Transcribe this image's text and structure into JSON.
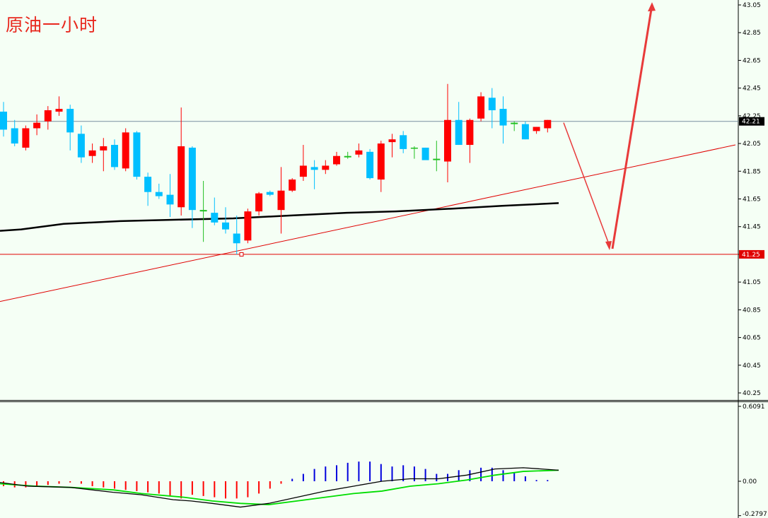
{
  "chart_data": [
    {
      "type": "candlestick",
      "title": "原油一小时",
      "ylim": [
        40.15,
        43.07
      ],
      "y_ticks": [
        "43.05",
        "42.85",
        "42.65",
        "42.45",
        "42.25",
        "42.05",
        "41.85",
        "41.65",
        "41.45",
        "41.25",
        "41.05",
        "40.85",
        "40.65",
        "40.45",
        "40.25"
      ],
      "current_price": "42.21",
      "support_price": "41.25",
      "colors": {
        "up": "#ff0000",
        "down": "#00bfff",
        "doji": "#22c022",
        "ma": "#000000",
        "support": "#e00000",
        "current_line": "#7a8fa0",
        "arrow": "#e83a3a"
      },
      "candles": [
        [
          42.28,
          42.35,
          42.1,
          42.15
        ],
        [
          42.16,
          42.22,
          42.03,
          42.05
        ],
        [
          42.02,
          42.18,
          42.0,
          42.16
        ],
        [
          42.16,
          42.26,
          42.11,
          42.2
        ],
        [
          42.21,
          42.32,
          42.15,
          42.29
        ],
        [
          42.28,
          42.39,
          42.25,
          42.3
        ],
        [
          42.3,
          42.33,
          42.0,
          42.13
        ],
        [
          42.12,
          42.18,
          41.91,
          41.95
        ],
        [
          41.96,
          42.05,
          41.91,
          42.0
        ],
        [
          42.0,
          42.09,
          41.85,
          42.03
        ],
        [
          42.04,
          42.08,
          41.86,
          41.88
        ],
        [
          41.87,
          42.16,
          41.85,
          42.13
        ],
        [
          42.13,
          42.14,
          41.79,
          41.81
        ],
        [
          41.81,
          41.84,
          41.6,
          41.7
        ],
        [
          41.7,
          41.76,
          41.65,
          41.67
        ],
        [
          41.68,
          41.83,
          41.52,
          41.61
        ],
        [
          41.59,
          42.31,
          41.53,
          42.03
        ],
        [
          42.02,
          42.03,
          41.44,
          41.57
        ],
        [
          41.56,
          41.78,
          41.34,
          41.57
        ],
        [
          41.55,
          41.66,
          41.46,
          41.48
        ],
        [
          41.48,
          41.59,
          41.4,
          41.43
        ],
        [
          41.4,
          41.53,
          41.25,
          41.33
        ],
        [
          41.35,
          41.58,
          41.33,
          41.56
        ],
        [
          41.56,
          41.7,
          41.53,
          41.69
        ],
        [
          41.7,
          41.71,
          41.67,
          41.68
        ],
        [
          41.57,
          41.88,
          41.4,
          41.71
        ],
        [
          41.71,
          41.8,
          41.7,
          41.79
        ],
        [
          41.81,
          42.04,
          41.78,
          41.89
        ],
        [
          41.88,
          41.93,
          41.72,
          41.86
        ],
        [
          41.86,
          41.93,
          41.83,
          41.89
        ],
        [
          41.9,
          41.99,
          41.89,
          41.96
        ],
        [
          41.95,
          41.99,
          41.94,
          41.96
        ],
        [
          41.97,
          42.05,
          41.95,
          42.0
        ],
        [
          41.99,
          42.01,
          41.79,
          41.8
        ],
        [
          41.79,
          42.07,
          41.7,
          42.05
        ],
        [
          42.06,
          42.12,
          41.95,
          42.08
        ],
        [
          42.11,
          42.14,
          41.98,
          42.01
        ],
        [
          42.02,
          42.03,
          41.94,
          42.02
        ],
        [
          42.02,
          42.02,
          41.94,
          41.93
        ],
        [
          41.93,
          42.07,
          41.85,
          41.94
        ],
        [
          41.92,
          42.48,
          41.77,
          42.22
        ],
        [
          42.22,
          42.35,
          42.04,
          42.04
        ],
        [
          42.04,
          42.23,
          41.91,
          42.22
        ],
        [
          42.23,
          42.42,
          42.21,
          42.39
        ],
        [
          42.38,
          42.45,
          42.16,
          42.29
        ],
        [
          42.3,
          42.39,
          42.05,
          42.18
        ],
        [
          42.2,
          42.21,
          42.14,
          42.19
        ],
        [
          42.19,
          42.21,
          42.08,
          42.08
        ],
        [
          42.14,
          42.17,
          42.12,
          42.17
        ],
        [
          42.16,
          42.22,
          42.13,
          42.22
        ]
      ],
      "ma": [
        [
          0,
          41.42
        ],
        [
          30,
          41.43
        ],
        [
          90,
          41.47
        ],
        [
          170,
          41.49
        ],
        [
          250,
          41.5
        ],
        [
          330,
          41.51
        ],
        [
          410,
          41.53
        ],
        [
          490,
          41.55
        ],
        [
          560,
          41.56
        ],
        [
          640,
          41.58
        ],
        [
          710,
          41.6
        ],
        [
          790,
          41.62
        ]
      ],
      "trendline": [
        [
          0,
          40.91
        ],
        [
          1040,
          42.04
        ]
      ],
      "forecast_arrow": [
        [
          797,
          42.2
        ],
        [
          862,
          41.28
        ],
        [
          922,
          43.07
        ]
      ]
    },
    {
      "type": "macd",
      "ylim": [
        -0.2797,
        0.6091
      ],
      "y_ticks": [
        "0.6091",
        "0.00",
        "-0.2797"
      ],
      "colors": {
        "neg_bar": "#ff0000",
        "pos_bar": "#0000dd",
        "line1": "#000000",
        "line2": "#00dd00"
      },
      "histogram": [
        -0.04,
        -0.05,
        -0.05,
        -0.04,
        -0.03,
        -0.02,
        -0.01,
        -0.02,
        -0.04,
        -0.05,
        -0.06,
        -0.07,
        -0.08,
        -0.09,
        -0.1,
        -0.12,
        -0.14,
        -0.11,
        -0.12,
        -0.13,
        -0.14,
        -0.14,
        -0.13,
        -0.1,
        -0.06,
        -0.02,
        0.02,
        0.06,
        0.1,
        0.12,
        0.13,
        0.15,
        0.16,
        0.16,
        0.14,
        0.12,
        0.13,
        0.12,
        0.1,
        0.06,
        0.06,
        0.09,
        0.09,
        0.11,
        0.11,
        0.09,
        0.07,
        0.04,
        0.01,
        0.01
      ],
      "signal_black": [
        [
          0,
          -0.01
        ],
        [
          40,
          -0.04
        ],
        [
          100,
          -0.05
        ],
        [
          160,
          -0.09
        ],
        [
          200,
          -0.11
        ],
        [
          245,
          -0.15
        ],
        [
          270,
          -0.16
        ],
        [
          300,
          -0.18
        ],
        [
          340,
          -0.21
        ],
        [
          380,
          -0.18
        ],
        [
          420,
          -0.13
        ],
        [
          460,
          -0.08
        ],
        [
          500,
          -0.04
        ],
        [
          540,
          0.0
        ],
        [
          580,
          0.02
        ],
        [
          620,
          0.02
        ],
        [
          660,
          0.05
        ],
        [
          700,
          0.1
        ],
        [
          740,
          0.11
        ],
        [
          790,
          0.09
        ]
      ],
      "signal_green": [
        [
          0,
          -0.02
        ],
        [
          50,
          -0.04
        ],
        [
          100,
          -0.05
        ],
        [
          160,
          -0.07
        ],
        [
          200,
          -0.1
        ],
        [
          260,
          -0.13
        ],
        [
          300,
          -0.16
        ],
        [
          340,
          -0.18
        ],
        [
          380,
          -0.19
        ],
        [
          420,
          -0.16
        ],
        [
          460,
          -0.13
        ],
        [
          500,
          -0.1
        ],
        [
          540,
          -0.08
        ],
        [
          580,
          -0.04
        ],
        [
          620,
          -0.02
        ],
        [
          660,
          0.01
        ],
        [
          700,
          0.05
        ],
        [
          740,
          0.08
        ],
        [
          790,
          0.09
        ]
      ]
    }
  ]
}
